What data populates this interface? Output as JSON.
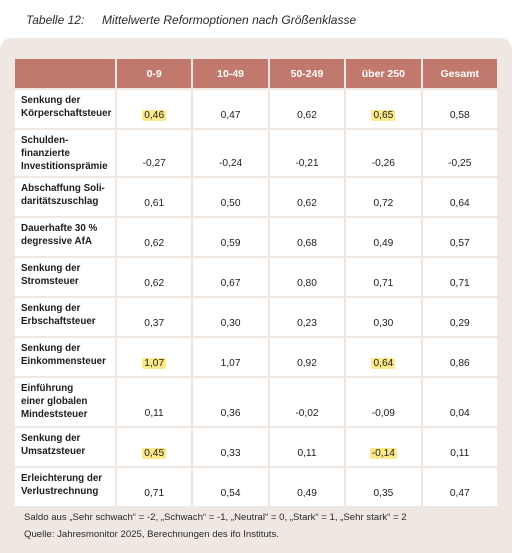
{
  "title": {
    "number": "Tabelle 12:",
    "text": "Mittelwerte Reformoptionen nach Größenklasse"
  },
  "table": {
    "columns": [
      "0-9",
      "10-49",
      "50-249",
      "über 250",
      "Gesamt"
    ],
    "rows": [
      {
        "label_lines": [
          "Senkung der",
          "Körperschaftsteuer"
        ],
        "values": [
          "0,46",
          "0,47",
          "0,62",
          "0,65",
          "0,58"
        ],
        "highlight": [
          true,
          false,
          false,
          true,
          false
        ]
      },
      {
        "label_lines": [
          "Schulden-",
          "finanzierte",
          "Investitionsprämie"
        ],
        "values": [
          "-0,27",
          "-0,24",
          "-0,21",
          "-0,26",
          "-0,25"
        ],
        "highlight": [
          false,
          false,
          false,
          false,
          false
        ]
      },
      {
        "label_lines": [
          "Abschaffung Soli-",
          "daritätszuschlag"
        ],
        "values": [
          "0,61",
          "0,50",
          "0,62",
          "0,72",
          "0,64"
        ],
        "highlight": [
          false,
          false,
          false,
          false,
          false
        ]
      },
      {
        "label_lines": [
          "Dauerhafte 30 %",
          "degressive AfA"
        ],
        "values": [
          "0,62",
          "0,59",
          "0,68",
          "0,49",
          "0,57"
        ],
        "highlight": [
          false,
          false,
          false,
          false,
          false
        ]
      },
      {
        "label_lines": [
          "Senkung der",
          "Stromsteuer"
        ],
        "values": [
          "0,62",
          "0,67",
          "0,80",
          "0,71",
          "0,71"
        ],
        "highlight": [
          false,
          false,
          false,
          false,
          false
        ]
      },
      {
        "label_lines": [
          "Senkung der",
          "Erbschaftsteuer"
        ],
        "values": [
          "0,37",
          "0,30",
          "0,23",
          "0,30",
          "0,29"
        ],
        "highlight": [
          false,
          false,
          false,
          false,
          false
        ]
      },
      {
        "label_lines": [
          "Senkung der",
          "Einkommensteuer"
        ],
        "values": [
          "1,07",
          "1,07",
          "0,92",
          "0,64",
          "0,86"
        ],
        "highlight": [
          true,
          false,
          false,
          true,
          false
        ]
      },
      {
        "label_lines": [
          "Einführung",
          "einer globalen",
          "Mindeststeuer"
        ],
        "values": [
          "0,11",
          "0,36",
          "-0,02",
          "-0,09",
          "0,04"
        ],
        "highlight": [
          false,
          false,
          false,
          false,
          false
        ]
      },
      {
        "label_lines": [
          "Senkung der",
          "Umsatzsteuer"
        ],
        "values": [
          "0,45",
          "0,33",
          "0,11",
          "-0,14",
          "0,11"
        ],
        "highlight": [
          true,
          false,
          false,
          true,
          false
        ]
      },
      {
        "label_lines": [
          "Erleichterung der",
          "Verlustrechnung"
        ],
        "values": [
          "0,71",
          "0,54",
          "0,49",
          "0,35",
          "0,47"
        ],
        "highlight": [
          false,
          false,
          false,
          false,
          false
        ]
      }
    ]
  },
  "notes": {
    "saldo": "Saldo aus „Sehr schwach“ = -2, „Schwach“ = -1, „Neutral“ = 0, „Stark“ = 1, „Sehr stark“ = 2",
    "source": "Quelle: Jahresmonitor 2025, Berechnungen des ifo Instituts."
  },
  "colors": {
    "header_bg": "#c2796d",
    "panel_bg": "#efe7e2",
    "highlight": "#fbe98a"
  }
}
